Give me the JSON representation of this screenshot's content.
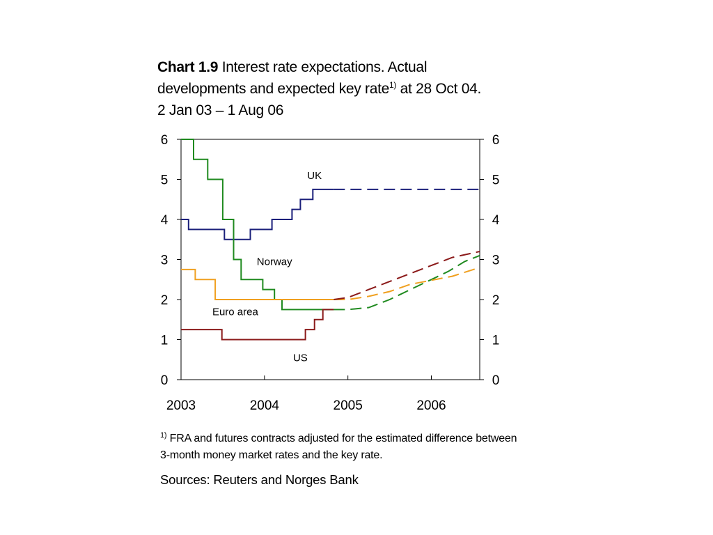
{
  "title": {
    "bold": "Chart 1.9",
    "line1": " Interest rate expectations. Actual",
    "line2_a": "developments and expected key rate",
    "line2_sup": "1)",
    "line2_b": " at 28 Oct 04.",
    "line3": "2 Jan 03 – 1 Aug 06"
  },
  "footnote": {
    "marker": "1)",
    "text": " FRA and futures contracts adjusted for the estimated difference between 3-month money market rates and the key rate."
  },
  "sources": "Sources: Reuters and Norges Bank",
  "chart_data": {
    "type": "line",
    "x_unit": "year",
    "x_range": [
      2003.0,
      2006.58
    ],
    "ylim": [
      0,
      6
    ],
    "yticks": [
      0,
      1,
      2,
      3,
      4,
      5,
      6
    ],
    "yticks_right": [
      0,
      1,
      2,
      3,
      4,
      5,
      6
    ],
    "xtick_labels": [
      "2003",
      "2004",
      "2005",
      "2006"
    ],
    "grid": false,
    "series": [
      {
        "name": "UK",
        "color": "#1a1f7a",
        "label_x": 2004.6,
        "label_y": 5.1,
        "actual": [
          [
            2003.0,
            4.0
          ],
          [
            2003.09,
            4.0
          ],
          [
            2003.09,
            3.75
          ],
          [
            2003.52,
            3.75
          ],
          [
            2003.52,
            3.5
          ],
          [
            2003.83,
            3.5
          ],
          [
            2003.83,
            3.75
          ],
          [
            2004.09,
            3.75
          ],
          [
            2004.09,
            4.0
          ],
          [
            2004.33,
            4.0
          ],
          [
            2004.33,
            4.25
          ],
          [
            2004.43,
            4.25
          ],
          [
            2004.43,
            4.5
          ],
          [
            2004.58,
            4.5
          ],
          [
            2004.58,
            4.75
          ],
          [
            2004.83,
            4.75
          ]
        ],
        "expected": [
          [
            2004.83,
            4.75
          ],
          [
            2006.58,
            4.75
          ]
        ]
      },
      {
        "name": "Norway",
        "color": "#1f8a1f",
        "label_x": 2004.12,
        "label_y": 2.95,
        "actual": [
          [
            2003.0,
            6.0
          ],
          [
            2003.15,
            6.0
          ],
          [
            2003.15,
            5.5
          ],
          [
            2003.32,
            5.5
          ],
          [
            2003.32,
            5.0
          ],
          [
            2003.5,
            5.0
          ],
          [
            2003.5,
            4.0
          ],
          [
            2003.63,
            4.0
          ],
          [
            2003.63,
            3.0
          ],
          [
            2003.72,
            3.0
          ],
          [
            2003.72,
            2.5
          ],
          [
            2003.98,
            2.5
          ],
          [
            2003.98,
            2.25
          ],
          [
            2004.12,
            2.25
          ],
          [
            2004.12,
            2.0
          ],
          [
            2004.21,
            2.0
          ],
          [
            2004.21,
            1.75
          ],
          [
            2004.83,
            1.75
          ]
        ],
        "expected": [
          [
            2004.83,
            1.75
          ],
          [
            2005.0,
            1.75
          ],
          [
            2005.25,
            1.8
          ],
          [
            2005.5,
            2.0
          ],
          [
            2005.75,
            2.25
          ],
          [
            2006.0,
            2.5
          ],
          [
            2006.2,
            2.7
          ],
          [
            2006.4,
            2.95
          ],
          [
            2006.58,
            3.1
          ]
        ]
      },
      {
        "name": "Euro area",
        "color": "#f0a020",
        "label_x": 2003.65,
        "label_y": 1.7,
        "actual": [
          [
            2003.0,
            2.75
          ],
          [
            2003.17,
            2.75
          ],
          [
            2003.17,
            2.5
          ],
          [
            2003.41,
            2.5
          ],
          [
            2003.41,
            2.0
          ],
          [
            2004.83,
            2.0
          ]
        ],
        "expected": [
          [
            2004.83,
            2.0
          ],
          [
            2005.0,
            2.0
          ],
          [
            2005.25,
            2.08
          ],
          [
            2005.5,
            2.2
          ],
          [
            2005.75,
            2.38
          ],
          [
            2006.0,
            2.48
          ],
          [
            2006.25,
            2.58
          ],
          [
            2006.58,
            2.8
          ]
        ]
      },
      {
        "name": "US",
        "color": "#8b1a1a",
        "label_x": 2004.43,
        "label_y": 0.55,
        "actual": [
          [
            2003.0,
            1.25
          ],
          [
            2003.49,
            1.25
          ],
          [
            2003.49,
            1.0
          ],
          [
            2004.49,
            1.0
          ],
          [
            2004.49,
            1.25
          ],
          [
            2004.6,
            1.25
          ],
          [
            2004.6,
            1.5
          ],
          [
            2004.7,
            1.5
          ],
          [
            2004.7,
            1.75
          ],
          [
            2004.83,
            1.75
          ]
        ],
        "expected": [
          [
            2004.83,
            2.0
          ],
          [
            2005.0,
            2.05
          ],
          [
            2005.25,
            2.25
          ],
          [
            2005.5,
            2.45
          ],
          [
            2005.75,
            2.65
          ],
          [
            2006.0,
            2.85
          ],
          [
            2006.25,
            3.05
          ],
          [
            2006.58,
            3.2
          ]
        ]
      }
    ]
  }
}
